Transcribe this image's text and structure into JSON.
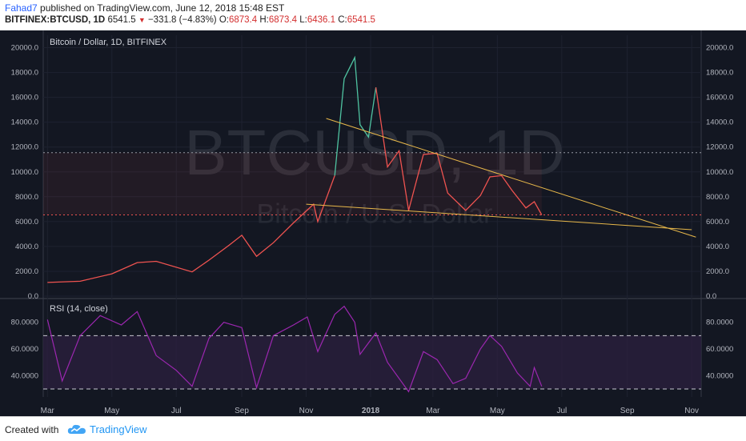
{
  "header": {
    "author": "Fahad7",
    "published_text": " published on TradingView.com, June 12, 2018 15:48 EST",
    "symbol": "BITFINEX:BTCUSD, 1D",
    "last": "6541.5",
    "change": "−331.8 (−4.83%)",
    "o_label": "O:",
    "o": "6873.4",
    "h_label": "H:",
    "h": "6873.4",
    "l_label": "L:",
    "l": "6436.1",
    "c_label": "C:",
    "c": "6541.5"
  },
  "footer": {
    "created_with": "Created with",
    "brand": "TradingView"
  },
  "colors": {
    "background": "#131722",
    "price_line": "#ef5350",
    "price_highlight": "#4fc3a1",
    "trendline": "#e8b84a",
    "rsi_line": "#9c27b0",
    "rsi_band": "#2a1f3d"
  },
  "chart_data": [
    {
      "type": "line",
      "title": "Bitcoin / Dollar, 1D, BITFINEX",
      "watermark": "BTCUSD, 1D",
      "watermark_sub": "Bitcoin / U.S. Dollar",
      "x_ticks": [
        "Mar",
        "May",
        "Jul",
        "Sep",
        "Nov",
        "2018",
        "Mar",
        "May",
        "Jul",
        "Sep",
        "Nov"
      ],
      "y_ticks": [
        "0.0",
        "2000.0",
        "4000.0",
        "6000.0",
        "8000.0",
        "10000.0",
        "12000.0",
        "14000.0",
        "16000.0",
        "18000.0",
        "20000.0"
      ],
      "ylim": [
        0,
        21000
      ],
      "x": [
        "2017-03-01",
        "2017-04-01",
        "2017-05-01",
        "2017-05-25",
        "2017-06-12",
        "2017-07-16",
        "2017-08-01",
        "2017-08-20",
        "2017-09-01",
        "2017-09-15",
        "2017-10-01",
        "2017-10-20",
        "2017-11-08",
        "2017-11-12",
        "2017-11-28",
        "2017-12-07",
        "2017-12-17",
        "2017-12-22",
        "2017-12-30",
        "2018-01-06",
        "2018-01-17",
        "2018-01-28",
        "2018-02-06",
        "2018-02-20",
        "2018-03-05",
        "2018-03-15",
        "2018-04-01",
        "2018-04-15",
        "2018-04-24",
        "2018-05-05",
        "2018-05-15",
        "2018-05-28",
        "2018-06-05",
        "2018-06-12"
      ],
      "y": [
        1100,
        1200,
        1800,
        2700,
        2800,
        1950,
        2900,
        4100,
        4900,
        3200,
        4300,
        5900,
        7400,
        6000,
        9700,
        17500,
        19200,
        13800,
        12800,
        16800,
        10400,
        11700,
        6900,
        11400,
        11500,
        8300,
        6900,
        8100,
        9600,
        9700,
        8500,
        7100,
        7600,
        6541.5
      ],
      "reference_levels": [
        11550,
        6541.5
      ],
      "trendlines": [
        {
          "x": [
            "2017-11-20",
            "2018-11-05"
          ],
          "y": [
            14300,
            4750
          ]
        },
        {
          "x": [
            "2017-11-01",
            "2018-11-01"
          ],
          "y": [
            7400,
            5350
          ]
        }
      ]
    },
    {
      "type": "line",
      "title": "RSI (14, close)",
      "y_ticks": [
        "40.0000",
        "60.0000",
        "80.0000"
      ],
      "ylim": [
        24,
        96
      ],
      "bands": [
        30,
        70
      ],
      "x": [
        "2017-03-01",
        "2017-03-15",
        "2017-04-01",
        "2017-04-20",
        "2017-05-10",
        "2017-05-25",
        "2017-06-12",
        "2017-07-01",
        "2017-07-16",
        "2017-08-01",
        "2017-08-15",
        "2017-09-01",
        "2017-09-15",
        "2017-10-01",
        "2017-10-20",
        "2017-11-02",
        "2017-11-12",
        "2017-11-28",
        "2017-12-07",
        "2017-12-17",
        "2017-12-22",
        "2018-01-06",
        "2018-01-17",
        "2018-02-06",
        "2018-02-20",
        "2018-03-05",
        "2018-03-20",
        "2018-04-01",
        "2018-04-15",
        "2018-04-24",
        "2018-05-05",
        "2018-05-20",
        "2018-06-01",
        "2018-06-05",
        "2018-06-12"
      ],
      "y": [
        82,
        36,
        70,
        85,
        78,
        88,
        55,
        44,
        32,
        68,
        80,
        76,
        31,
        70,
        78,
        84,
        58,
        86,
        92,
        80,
        56,
        72,
        50,
        28,
        58,
        52,
        34,
        38,
        60,
        70,
        62,
        42,
        32,
        46,
        32
      ]
    }
  ]
}
